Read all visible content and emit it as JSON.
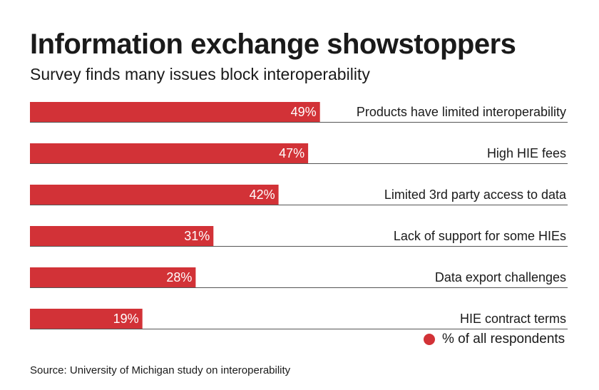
{
  "header": {
    "title": "Information exchange showstoppers",
    "subtitle": "Survey finds many issues block interoperability"
  },
  "chart_data": {
    "type": "bar",
    "orientation": "horizontal",
    "title": "Information exchange showstoppers",
    "subtitle": "Survey finds many issues block interoperability",
    "categories": [
      "Products have limited interoperability",
      "High HIE fees",
      "Limited 3rd party access to data",
      "Lack of support for some HIEs",
      "Data export challenges",
      "HIE contract terms"
    ],
    "values": [
      49,
      47,
      42,
      31,
      28,
      19
    ],
    "value_labels": [
      "49%",
      "47%",
      "42%",
      "31%",
      "28%",
      "19%"
    ],
    "unit": "%",
    "xlim": [
      0,
      100
    ],
    "xlabel": "",
    "ylabel": "",
    "grid": false,
    "legend": {
      "position": "bottom-right",
      "entries": [
        {
          "label": "% of all respondents",
          "color": "#d23237"
        }
      ]
    },
    "bar_color": "#d23237"
  },
  "colors": {
    "bar": "#d23237",
    "text": "#1a1a1a",
    "rule": "#555555",
    "label_on_bar": "#ffffff"
  },
  "legend": {
    "label": "% of all respondents"
  },
  "source": "Source: University of Michigan study on interoperability"
}
